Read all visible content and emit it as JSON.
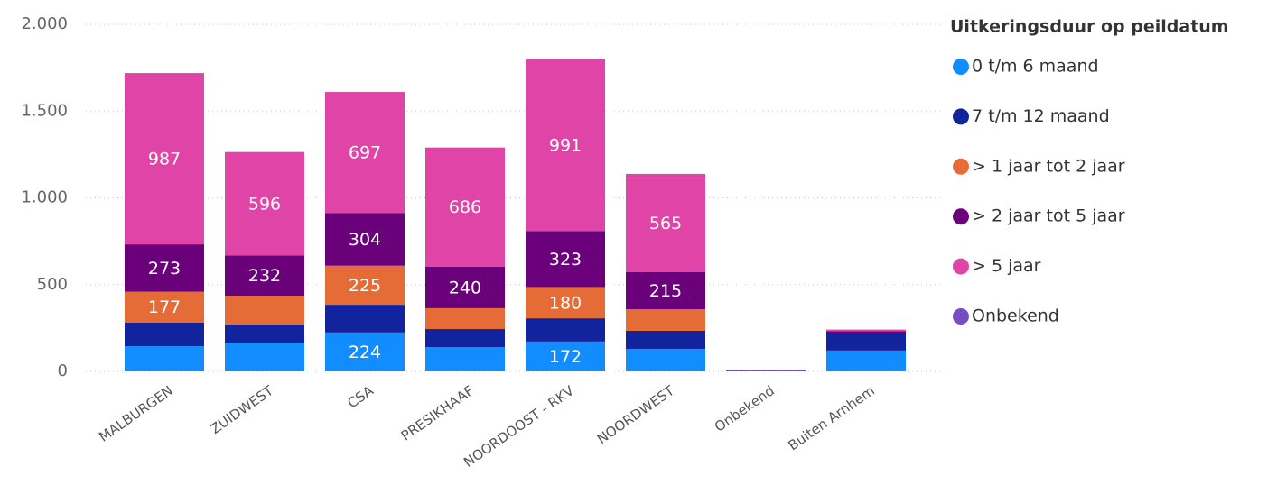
{
  "chart_data": {
    "type": "stacked_bar",
    "legend_title": "Uitkeringsduur op peildatum",
    "legend_position": "right",
    "categories": [
      "MALBURGEN",
      "ZUIDWEST",
      "CSA",
      "PRESIKHAAF",
      "NOORDOOST - RKV",
      "NOORDWEST",
      "Onbekend",
      "Buiten Arnhem"
    ],
    "series": [
      {
        "name": "0 t/m 6 maand",
        "color": "#118dff",
        "values": [
          145,
          166,
          224,
          140,
          172,
          130,
          null,
          120
        ]
      },
      {
        "name": "7 t/m 12 maand",
        "color": "#12239e",
        "values": [
          137,
          104,
          160,
          104,
          134,
          104,
          null,
          108
        ]
      },
      {
        "name": "> 1 jaar tot 2 jaar",
        "color": "#e66c37",
        "values": [
          177,
          166,
          225,
          120,
          180,
          124,
          null,
          null
        ]
      },
      {
        "name": "> 2 jaar tot 5 jaar",
        "color": "#6b007b",
        "values": [
          273,
          232,
          304,
          240,
          323,
          215,
          null,
          3
        ]
      },
      {
        "name": "> 5 jaar",
        "color": "#e044a7",
        "values": [
          987,
          596,
          697,
          686,
          991,
          565,
          null,
          10
        ]
      },
      {
        "name": "Onbekend",
        "color": "#744ec2",
        "values": [
          null,
          null,
          null,
          null,
          null,
          null,
          10,
          null
        ]
      }
    ],
    "ylim": [
      0,
      2000
    ],
    "yticks": [
      {
        "value": 0,
        "label": "0"
      },
      {
        "value": 500,
        "label": "500"
      },
      {
        "value": 1000,
        "label": "1.000"
      },
      {
        "value": 1500,
        "label": "1.500"
      },
      {
        "value": 2000,
        "label": "2.000"
      }
    ],
    "grid": true
  }
}
